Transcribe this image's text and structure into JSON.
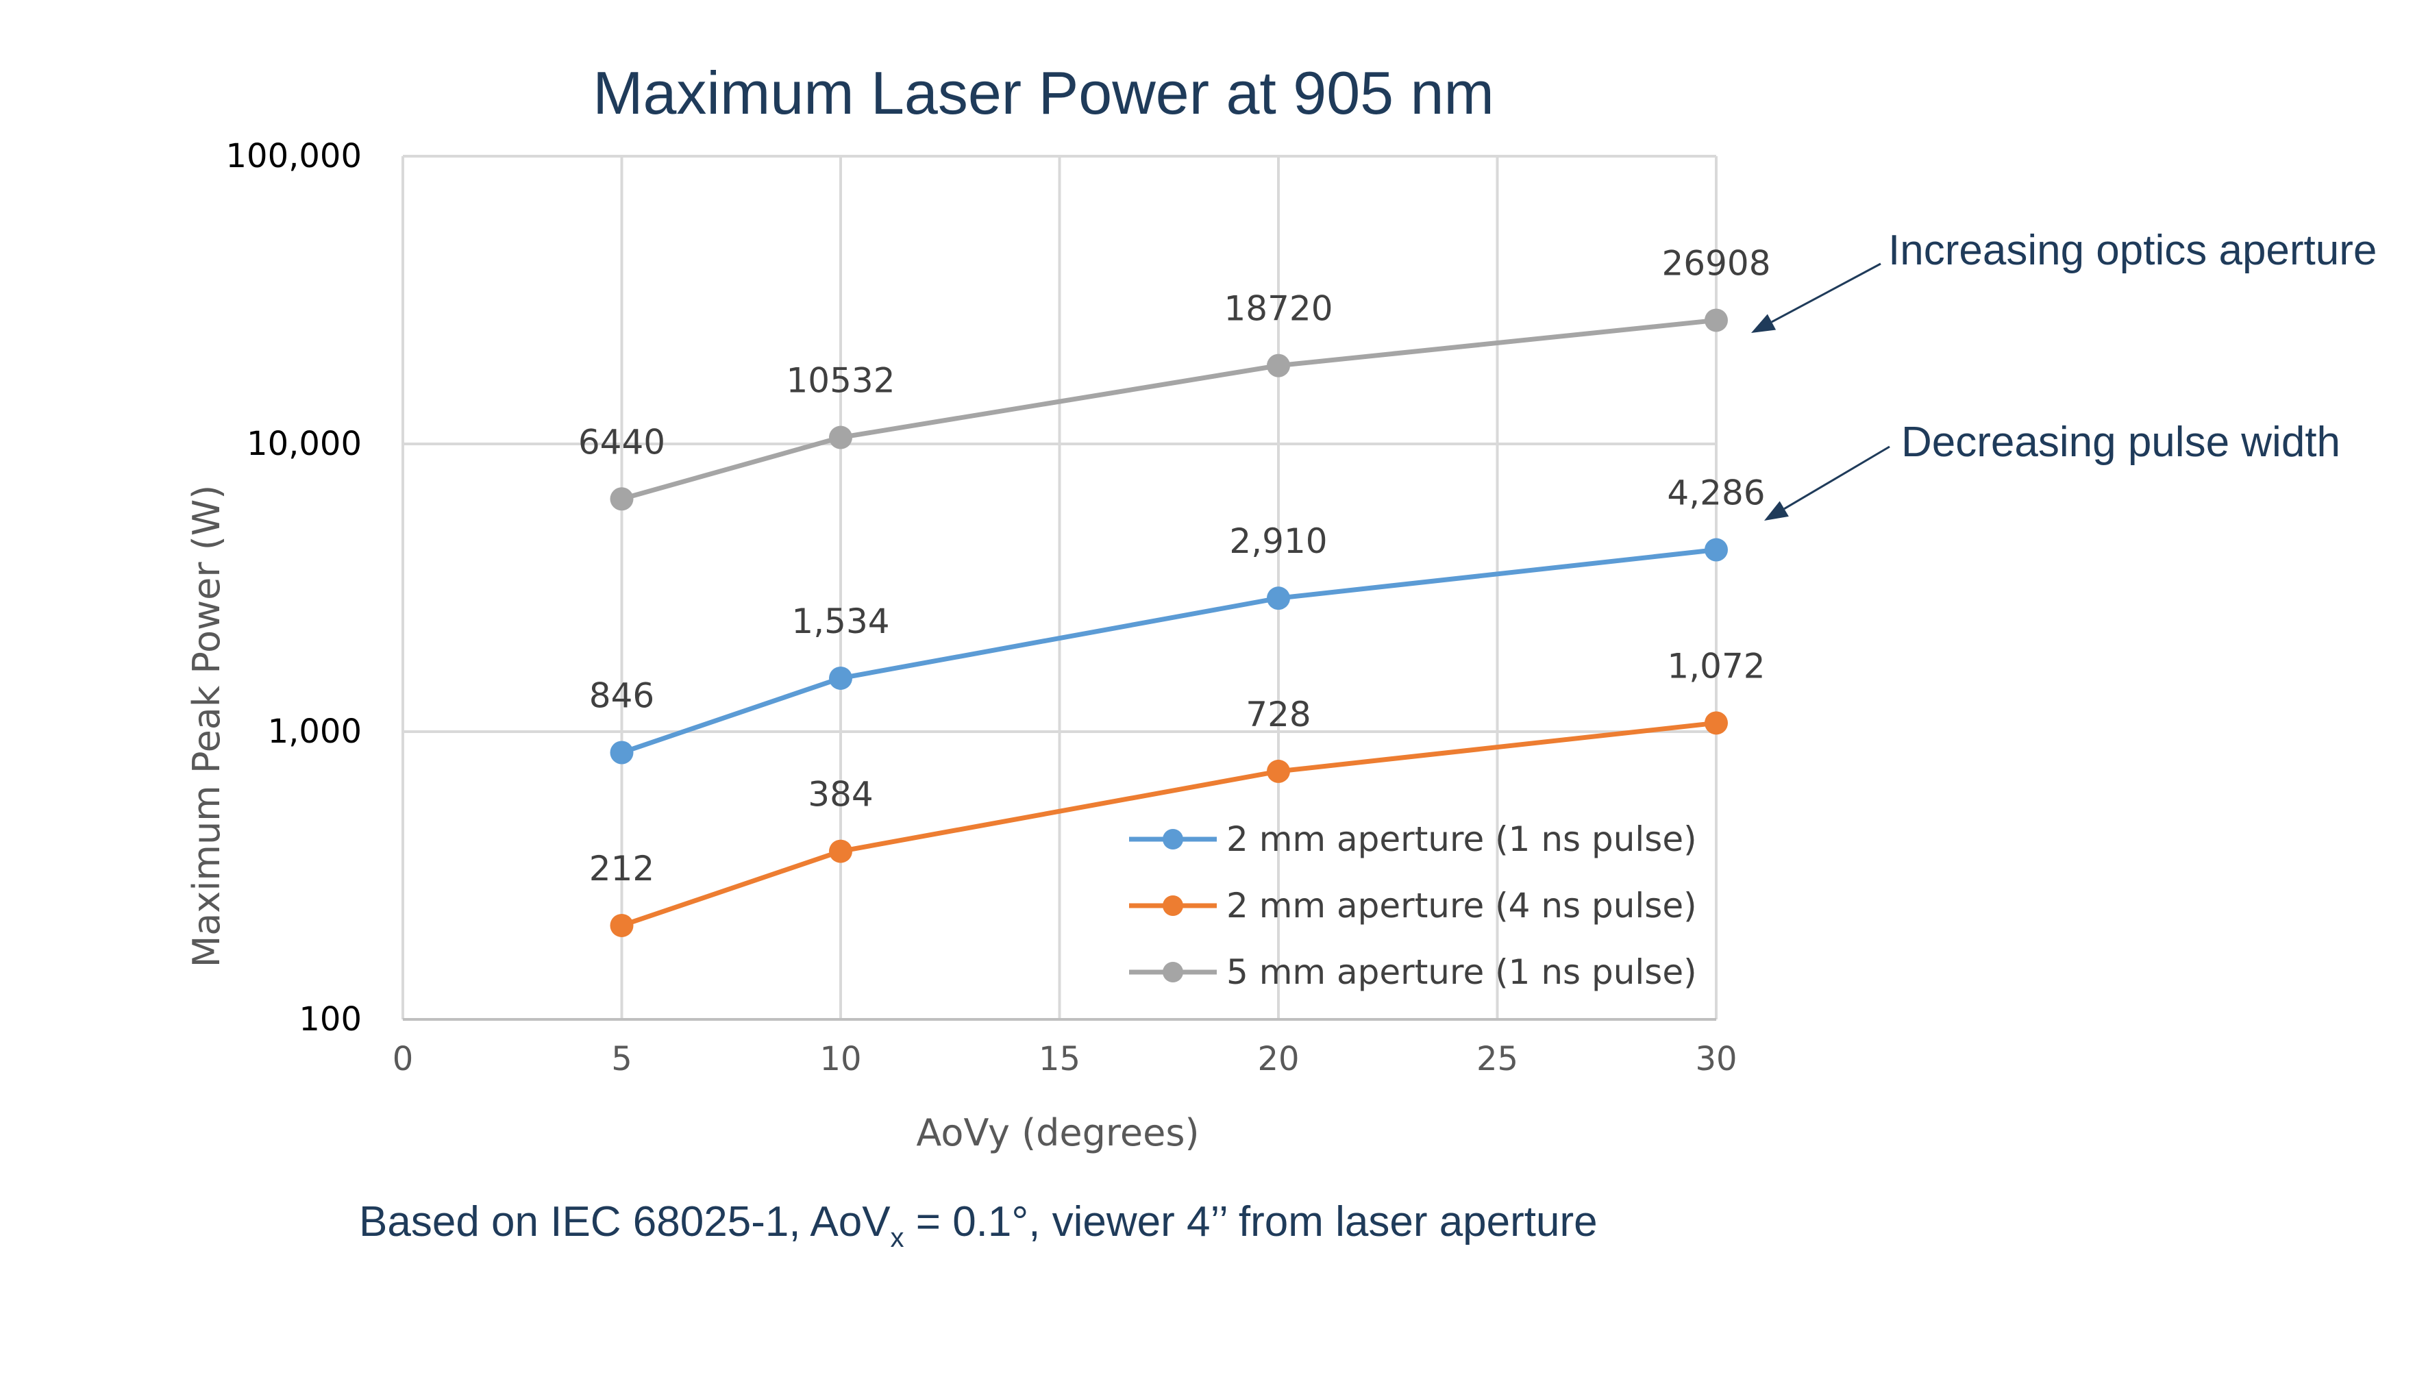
{
  "chart_data": {
    "type": "line",
    "title": "Maximum Laser Power at 905 nm",
    "xlabel": "AoVy (degrees)",
    "ylabel": "Maximum Peak Power (W)",
    "xlim": [
      0,
      30
    ],
    "x_ticks": [
      "0",
      "5",
      "10",
      "15",
      "20",
      "25",
      "30"
    ],
    "x_tick_values": [
      0,
      5,
      10,
      15,
      20,
      25,
      30
    ],
    "ylim": [
      100,
      100000
    ],
    "y_scale": "log",
    "y_ticks": [
      "100",
      "1,000",
      "10,000",
      "100,000"
    ],
    "y_tick_values": [
      100,
      1000,
      10000,
      100000
    ],
    "grid": true,
    "legend_position": "bottom-right",
    "x": [
      5,
      10,
      20,
      30
    ],
    "series": [
      {
        "name": "2 mm aperture (1 ns pulse)",
        "color": "#5b9bd5",
        "values": [
          846,
          1534,
          2910,
          4286
        ],
        "labels": [
          "846",
          "1,534",
          "2,910",
          "4,286"
        ]
      },
      {
        "name": "2 mm aperture (4 ns pulse)",
        "color": "#ed7d31",
        "values": [
          212,
          384,
          728,
          1072
        ],
        "labels": [
          "212",
          "384",
          "728",
          "1,072"
        ]
      },
      {
        "name": "5 mm aperture (1 ns pulse)",
        "color": "#a5a5a5",
        "values": [
          6440,
          10532,
          18720,
          26908
        ],
        "labels": [
          "6440",
          "10532",
          "18720",
          "26908"
        ]
      }
    ],
    "annotations": [
      {
        "text": "Increasing optics aperture",
        "target_series": 2
      },
      {
        "text": "Decreasing pulse width",
        "target_series": 0
      }
    ]
  },
  "footnote": {
    "prefix": "Based on IEC 68025-1, AoV",
    "subscript": "x",
    "suffix": " = 0.1°, viewer 4’’ from laser aperture"
  }
}
